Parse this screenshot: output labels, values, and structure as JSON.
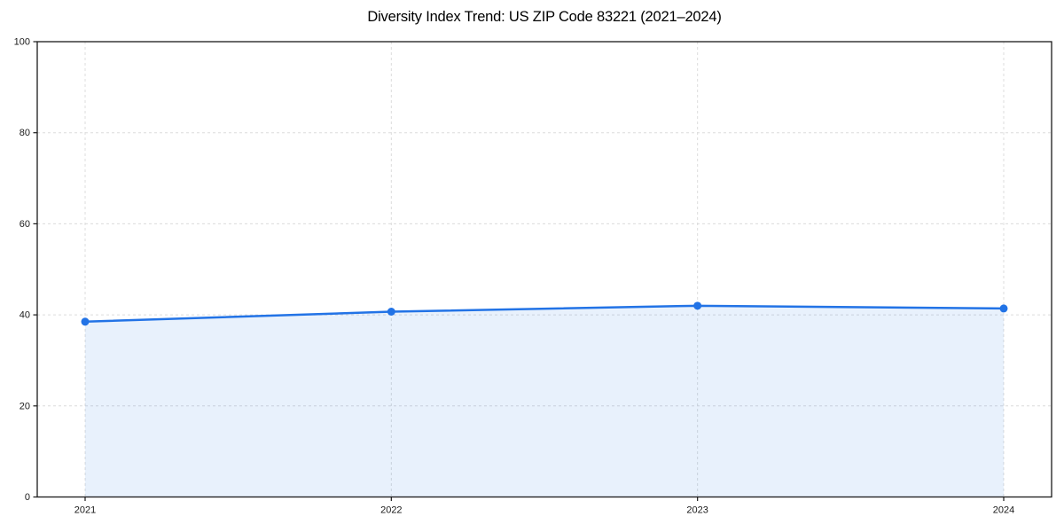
{
  "header": {
    "title": "Diversity Index Trend: US ZIP Code 83221 (2021–2024)"
  },
  "chart_data": {
    "type": "line",
    "title": "Diversity Index Trend: US ZIP Code 83221 (2021–2024)",
    "xlabel": "",
    "ylabel": "",
    "categories": [
      "2021",
      "2022",
      "2023",
      "2024"
    ],
    "series": [
      {
        "name": "Diversity Index",
        "values": [
          38.5,
          40.7,
          42.0,
          41.4
        ]
      }
    ],
    "ylim": [
      0,
      100
    ],
    "yticks": [
      0,
      20,
      40,
      60,
      80,
      100
    ],
    "grid": true,
    "grid_style": "dashed",
    "legend_position": "none",
    "area_fill": true,
    "marker": "circle",
    "colors": {
      "line": "#2273e6",
      "marker": "#2273e6",
      "area_fill_rgba": "rgba(34,115,230,0.10)",
      "grid": "#dcdcdc",
      "spine": "#1a1a1a",
      "tick_label": "#1a1a1a",
      "title": "#000000",
      "background": "#ffffff"
    }
  }
}
